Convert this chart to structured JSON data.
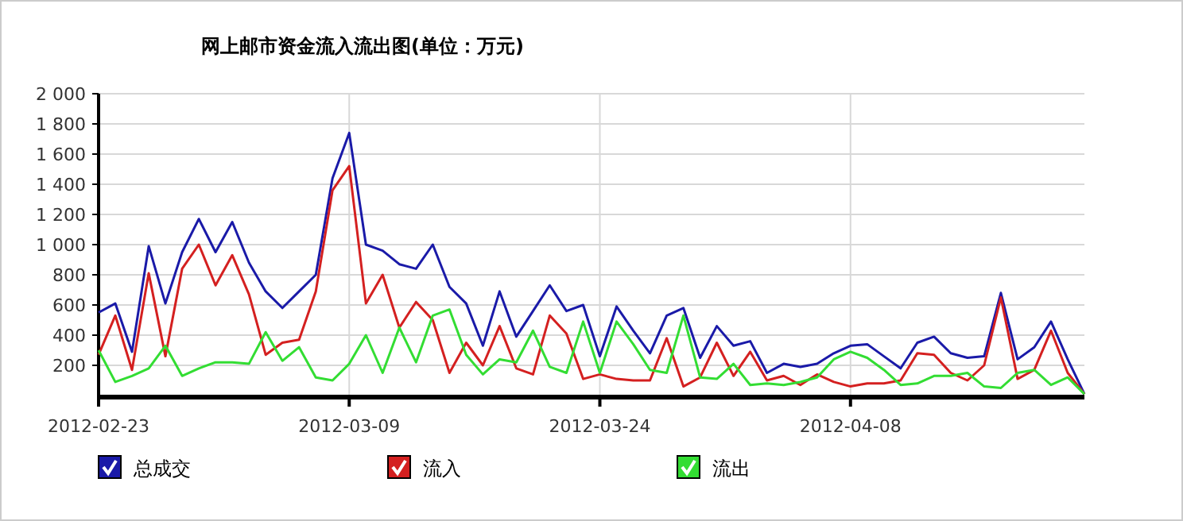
{
  "chart_data": {
    "type": "line",
    "title": "网上邮市资金流入流出图(单位：万元)",
    "x": [
      "2012-02-23",
      "2012-02-24",
      "2012-02-25",
      "2012-02-26",
      "2012-02-27",
      "2012-02-28",
      "2012-02-29",
      "2012-03-01",
      "2012-03-02",
      "2012-03-03",
      "2012-03-04",
      "2012-03-05",
      "2012-03-06",
      "2012-03-07",
      "2012-03-08",
      "2012-03-09",
      "2012-03-10",
      "2012-03-11",
      "2012-03-12",
      "2012-03-13",
      "2012-03-14",
      "2012-03-15",
      "2012-03-16",
      "2012-03-17",
      "2012-03-18",
      "2012-03-19",
      "2012-03-20",
      "2012-03-21",
      "2012-03-22",
      "2012-03-23",
      "2012-03-24",
      "2012-03-25",
      "2012-03-26",
      "2012-03-27",
      "2012-03-28",
      "2012-03-29",
      "2012-03-30",
      "2012-03-31",
      "2012-04-01",
      "2012-04-02",
      "2012-04-03",
      "2012-04-04",
      "2012-04-05",
      "2012-04-06",
      "2012-04-07",
      "2012-04-08",
      "2012-04-09",
      "2012-04-10",
      "2012-04-11",
      "2012-04-12",
      "2012-04-13",
      "2012-04-14",
      "2012-04-15",
      "2012-04-16",
      "2012-04-17",
      "2012-04-18",
      "2012-04-19",
      "2012-04-20",
      "2012-04-21",
      "2012-04-22"
    ],
    "series": [
      {
        "name": "总成交",
        "color": "#1a1aa8",
        "values": [
          550,
          610,
          290,
          990,
          610,
          950,
          1170,
          950,
          1150,
          880,
          690,
          580,
          690,
          800,
          1440,
          1740,
          1000,
          960,
          870,
          840,
          1000,
          720,
          610,
          330,
          690,
          390,
          560,
          730,
          560,
          600,
          260,
          590,
          430,
          280,
          530,
          580,
          250,
          460,
          330,
          360,
          150,
          210,
          190,
          210,
          280,
          330,
          340,
          260,
          180,
          350,
          390,
          280,
          250,
          260,
          680,
          240,
          320,
          490,
          240,
          10
        ]
      },
      {
        "name": "流入",
        "color": "#d42020",
        "values": [
          270,
          530,
          170,
          810,
          260,
          840,
          1000,
          730,
          930,
          670,
          270,
          350,
          370,
          690,
          1360,
          1520,
          610,
          800,
          450,
          620,
          500,
          150,
          350,
          200,
          460,
          180,
          140,
          530,
          410,
          110,
          140,
          110,
          100,
          100,
          380,
          60,
          120,
          350,
          130,
          290,
          100,
          130,
          70,
          140,
          90,
          60,
          80,
          80,
          100,
          280,
          270,
          150,
          100,
          200,
          650,
          110,
          170,
          430,
          150,
          10
        ]
      },
      {
        "name": "流出",
        "color": "#33dd33",
        "values": [
          300,
          90,
          130,
          180,
          330,
          130,
          180,
          220,
          220,
          210,
          420,
          230,
          320,
          120,
          100,
          210,
          400,
          150,
          450,
          220,
          530,
          570,
          270,
          140,
          240,
          220,
          430,
          190,
          150,
          490,
          150,
          490,
          340,
          170,
          150,
          530,
          120,
          110,
          210,
          70,
          80,
          70,
          90,
          120,
          240,
          290,
          250,
          170,
          70,
          80,
          130,
          130,
          150,
          60,
          50,
          150,
          170,
          70,
          120,
          10
        ]
      }
    ],
    "xlim": [
      "2012-02-23",
      "2012-04-22"
    ],
    "xticks": [
      "2012-02-23",
      "2012-03-09",
      "2012-03-24",
      "2012-04-08"
    ],
    "ylim": [
      0,
      2000
    ],
    "yticks": [
      {
        "value": 200,
        "label": "200"
      },
      {
        "value": 400,
        "label": "400"
      },
      {
        "value": 600,
        "label": "600"
      },
      {
        "value": 800,
        "label": "800"
      },
      {
        "value": 1000,
        "label": "1 000"
      },
      {
        "value": 1200,
        "label": "1 200"
      },
      {
        "value": 1400,
        "label": "1 400"
      },
      {
        "value": 1600,
        "label": "1 600"
      },
      {
        "value": 1800,
        "label": "1 800"
      },
      {
        "value": 2000,
        "label": "2 000"
      }
    ],
    "grid": true,
    "legend": "bottom",
    "marker": "none",
    "line_style": "solid"
  }
}
